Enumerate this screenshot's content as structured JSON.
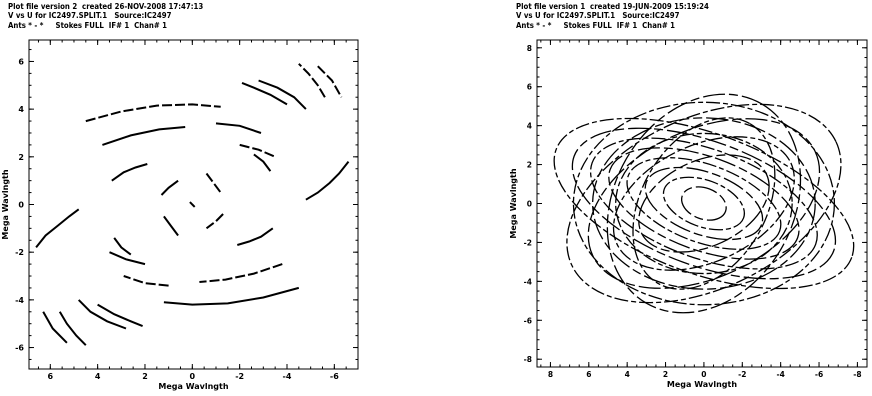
{
  "plots": [
    {
      "header": {
        "line1": "Plot file version 2  created 26-NOV-2008 17:47:13",
        "line2": "V vs U for IC2497.SPLIT.1   Source:IC2497",
        "line3": "Ants * - *     Stokes FULL  IF# 1  Chan# 1"
      },
      "xlabel": "Mega Wavlngth",
      "ylabel": "Mega Wavlngth",
      "x_tick_labels": [
        "6",
        "4",
        "2",
        "0",
        "-2",
        "-4",
        "-6"
      ],
      "y_tick_labels": [
        "6",
        "4",
        "2",
        "0",
        "-2",
        "-4",
        "-6"
      ]
    },
    {
      "header": {
        "line1": "Plot file version 1  created 19-JUN-2009 15:19:24",
        "line2": "V vs U for IC2497.SPLIT.1   Source:IC2497",
        "line3": "Ants * - *     Stokes FULL  IF# 1  Chan# 1"
      },
      "xlabel": "Mega Wavlngth",
      "ylabel": "Mega Wavlngth",
      "x_tick_labels": [
        "8",
        "6",
        "4",
        "2",
        "0",
        "-2",
        "-4",
        "-6",
        "-8"
      ],
      "y_tick_labels": [
        "8",
        "6",
        "4",
        "2",
        "0",
        "-2",
        "-4",
        "-6",
        "-8"
      ]
    }
  ],
  "chart_data": [
    {
      "type": "scatter",
      "title": "Plot file version 2  created 26-NOV-2008 17:47:13",
      "xlabel": "Mega Wavlngth",
      "ylabel": "Mega Wavlngth",
      "xlim": [
        6.9,
        -7.0
      ],
      "ylim": [
        -6.9,
        6.9
      ],
      "x_reversed": true,
      "grid": false,
      "series": [
        {
          "x": [
            6.6,
            6.2,
            5.7,
            5.2,
            4.8
          ],
          "y": [
            -1.8,
            -1.3,
            -0.9,
            -0.5,
            -0.2
          ]
        },
        {
          "x": [
            -4.8,
            -5.3,
            -5.8,
            -6.2,
            -6.6
          ],
          "y": [
            0.2,
            0.5,
            0.9,
            1.3,
            1.8
          ]
        },
        {
          "x": [
            4.5,
            3.0,
            1.5,
            0.0,
            -1.2
          ],
          "y": [
            3.5,
            3.9,
            4.15,
            4.2,
            4.1
          ]
        },
        {
          "x": [
            -4.5,
            -3.0,
            -1.5,
            0.0,
            1.2
          ],
          "y": [
            -3.5,
            -3.9,
            -4.15,
            -4.2,
            -4.1
          ]
        },
        {
          "x": [
            3.8,
            2.6,
            1.4,
            0.3
          ],
          "y": [
            2.5,
            2.9,
            3.15,
            3.25
          ]
        },
        {
          "x": [
            -3.8,
            -2.6,
            -1.4,
            -0.3
          ],
          "y": [
            -2.5,
            -2.9,
            -3.15,
            -3.25
          ]
        },
        {
          "x": [
            3.4,
            2.9,
            2.4,
            1.9
          ],
          "y": [
            1.0,
            1.35,
            1.55,
            1.7
          ]
        },
        {
          "x": [
            -3.4,
            -2.9,
            -2.4,
            -1.9
          ],
          "y": [
            -1.0,
            -1.35,
            -1.55,
            -1.7
          ]
        },
        {
          "x": [
            -2.0,
            -2.8,
            -3.5
          ],
          "y": [
            2.5,
            2.3,
            2.0
          ]
        },
        {
          "x": [
            2.0,
            2.8,
            3.5
          ],
          "y": [
            -2.5,
            -2.3,
            -2.0
          ]
        },
        {
          "x": [
            -1.0,
            -2.0,
            -2.9
          ],
          "y": [
            3.4,
            3.3,
            3.0
          ]
        },
        {
          "x": [
            1.0,
            2.0,
            2.9
          ],
          "y": [
            -3.4,
            -3.3,
            -3.0
          ]
        },
        {
          "x": [
            -2.8,
            -3.6,
            -4.3,
            -4.8
          ],
          "y": [
            5.2,
            4.9,
            4.5,
            4.0
          ]
        },
        {
          "x": [
            2.8,
            3.6,
            4.3,
            4.8
          ],
          "y": [
            -5.2,
            -4.9,
            -4.5,
            -4.0
          ]
        },
        {
          "x": [
            -5.3,
            -5.9,
            -6.3
          ],
          "y": [
            5.8,
            5.2,
            4.5
          ]
        },
        {
          "x": [
            5.3,
            5.9,
            6.3
          ],
          "y": [
            -5.8,
            -5.2,
            -4.5
          ]
        },
        {
          "x": [
            5.6,
            5.3,
            4.9,
            4.5
          ],
          "y": [
            -4.5,
            -5.0,
            -5.5,
            -5.9
          ]
        },
        {
          "x": [
            -5.6,
            -5.3,
            -4.9,
            -4.5
          ],
          "y": [
            4.5,
            5.0,
            5.5,
            5.9
          ]
        },
        {
          "x": [
            4.0,
            3.3,
            2.6,
            2.1
          ],
          "y": [
            -4.2,
            -4.6,
            -4.9,
            -5.1
          ]
        },
        {
          "x": [
            -4.0,
            -3.3,
            -2.6,
            -2.1
          ],
          "y": [
            4.2,
            4.6,
            4.9,
            5.1
          ]
        },
        {
          "x": [
            -0.6,
            -0.9,
            -1.2
          ],
          "y": [
            1.3,
            0.9,
            0.5
          ]
        },
        {
          "x": [
            0.6,
            0.9,
            1.2
          ],
          "y": [
            -1.3,
            -0.9,
            -0.5
          ]
        },
        {
          "x": [
            1.3,
            1.0,
            0.6
          ],
          "y": [
            0.4,
            0.7,
            1.0
          ]
        },
        {
          "x": [
            -1.3,
            -1.0,
            -0.6
          ],
          "y": [
            -0.4,
            -0.7,
            -1.0
          ]
        },
        {
          "x": [
            -3.3,
            -3.0,
            -2.6
          ],
          "y": [
            1.4,
            1.8,
            2.1
          ]
        },
        {
          "x": [
            3.3,
            3.0,
            2.6
          ],
          "y": [
            -1.4,
            -1.8,
            -2.1
          ]
        },
        {
          "x": [
            0.1,
            -0.1,
            0.0
          ],
          "y": [
            0.1,
            -0.1,
            0.0
          ]
        }
      ]
    },
    {
      "type": "scatter",
      "title": "Plot file version 1  created 19-JUN-2009 15:19:24",
      "xlabel": "Mega Wavlngth",
      "ylabel": "Mega Wavlngth",
      "xlim": [
        8.7,
        -8.5
      ],
      "ylim": [
        -8.4,
        8.4
      ],
      "x_reversed": true,
      "grid": false,
      "series": [
        {
          "x": [
            0,
            0,
            0
          ],
          "y": [
            0,
            0,
            0
          ],
          "ellipses": [
            {
              "a": 8.2,
              "b": 3.6,
              "angle_deg": -20
            },
            {
              "a": 7.2,
              "b": 3.2,
              "angle_deg": -20
            },
            {
              "a": 6.2,
              "b": 2.8,
              "angle_deg": -20
            },
            {
              "a": 5.2,
              "b": 2.4,
              "angle_deg": -20
            },
            {
              "a": 4.2,
              "b": 2.0,
              "angle_deg": -20
            },
            {
              "a": 3.2,
              "b": 1.6,
              "angle_deg": -20
            },
            {
              "a": 2.2,
              "b": 1.2,
              "angle_deg": -20
            },
            {
              "a": 1.2,
              "b": 0.8,
              "angle_deg": -20
            },
            {
              "a": 7.6,
              "b": 4.4,
              "angle_deg": 25
            },
            {
              "a": 6.4,
              "b": 3.8,
              "angle_deg": 25
            },
            {
              "a": 5.0,
              "b": 3.0,
              "angle_deg": 25
            },
            {
              "a": 3.6,
              "b": 2.2,
              "angle_deg": 25
            },
            {
              "a": 6.8,
              "b": 5.2,
              "angle_deg": 0
            },
            {
              "a": 5.8,
              "b": 4.4,
              "angle_deg": 0
            },
            {
              "a": 4.6,
              "b": 3.6,
              "angle_deg": 0
            },
            {
              "a": 6.0,
              "b": 4.6,
              "angle_deg": 60
            },
            {
              "a": 4.8,
              "b": 3.2,
              "angle_deg": 60
            }
          ]
        }
      ]
    }
  ]
}
